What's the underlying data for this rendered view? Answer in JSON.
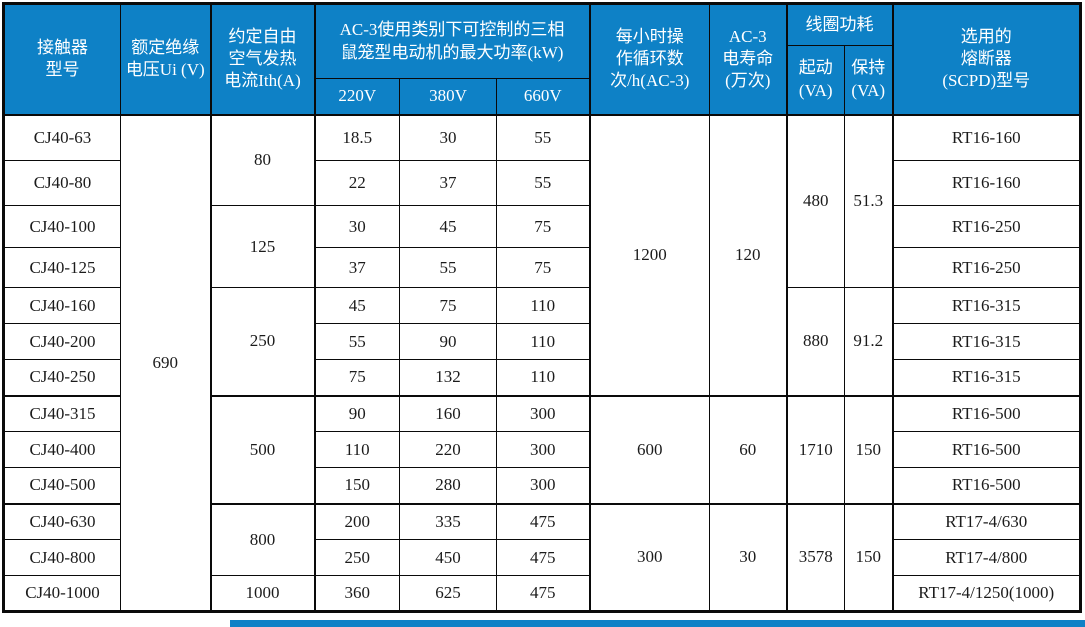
{
  "accent_color": "#0e81c6",
  "table": {
    "header": {
      "model": "接触器\n型号",
      "insulation": "额定绝缘\n电压Ui (V)",
      "thermal": "约定自由\n空气发热\n电流Ith(A)",
      "ac3_power": "AC-3使用类别下可控制的三相\n鼠笼型电动机的最大功率(kW)",
      "v220": "220V",
      "v380": "380V",
      "v660": "660V",
      "cycles": "每小时操\n作循环数\n次/h(AC-3)",
      "life": "AC-3\n电寿命\n(万次)",
      "coil": "线圈功耗",
      "coil_start": "起动\n(VA)",
      "coil_hold": "保持\n(VA)",
      "fuse": "选用的\n熔断器\n(SCPD)型号"
    },
    "rows": [
      {
        "model": "CJ40-63",
        "kw220": "18.5",
        "kw380": "30",
        "kw660": "55",
        "fuse": "RT16-160"
      },
      {
        "model": "CJ40-80",
        "kw220": "22",
        "kw380": "37",
        "kw660": "55",
        "fuse": "RT16-160"
      },
      {
        "model": "CJ40-100",
        "kw220": "30",
        "kw380": "45",
        "kw660": "75",
        "fuse": "RT16-250"
      },
      {
        "model": "CJ40-125",
        "kw220": "37",
        "kw380": "55",
        "kw660": "75",
        "fuse": "RT16-250"
      },
      {
        "model": "CJ40-160",
        "kw220": "45",
        "kw380": "75",
        "kw660": "110",
        "fuse": "RT16-315"
      },
      {
        "model": "CJ40-200",
        "kw220": "55",
        "kw380": "90",
        "kw660": "110",
        "fuse": "RT16-315"
      },
      {
        "model": "CJ40-250",
        "kw220": "75",
        "kw380": "132",
        "kw660": "110",
        "fuse": "RT16-315"
      },
      {
        "model": "CJ40-315",
        "kw220": "90",
        "kw380": "160",
        "kw660": "300",
        "fuse": "RT16-500"
      },
      {
        "model": "CJ40-400",
        "kw220": "110",
        "kw380": "220",
        "kw660": "300",
        "fuse": "RT16-500"
      },
      {
        "model": "CJ40-500",
        "kw220": "150",
        "kw380": "280",
        "kw660": "300",
        "fuse": "RT16-500"
      },
      {
        "model": "CJ40-630",
        "kw220": "200",
        "kw380": "335",
        "kw660": "475",
        "fuse": "RT17-4/630"
      },
      {
        "model": "CJ40-800",
        "kw220": "250",
        "kw380": "450",
        "kw660": "475",
        "fuse": "RT17-4/800"
      },
      {
        "model": "CJ40-1000",
        "kw220": "360",
        "kw380": "625",
        "kw660": "475",
        "fuse": "RT17-4/1250(1000)"
      }
    ],
    "merged": {
      "insulation": [
        {
          "value": "690",
          "start": 0,
          "span": 13
        }
      ],
      "thermal": [
        {
          "value": "80",
          "start": 0,
          "span": 2
        },
        {
          "value": "125",
          "start": 2,
          "span": 2
        },
        {
          "value": "250",
          "start": 4,
          "span": 3
        },
        {
          "value": "500",
          "start": 7,
          "span": 3
        },
        {
          "value": "800",
          "start": 10,
          "span": 2
        },
        {
          "value": "1000",
          "start": 12,
          "span": 1
        }
      ],
      "cycles": [
        {
          "value": "1200",
          "start": 0,
          "span": 7
        },
        {
          "value": "600",
          "start": 7,
          "span": 3
        },
        {
          "value": "300",
          "start": 10,
          "span": 3
        }
      ],
      "life": [
        {
          "value": "120",
          "start": 0,
          "span": 7
        },
        {
          "value": "60",
          "start": 7,
          "span": 3
        },
        {
          "value": "30",
          "start": 10,
          "span": 3
        }
      ],
      "coil_start": [
        {
          "value": "480",
          "start": 0,
          "span": 4
        },
        {
          "value": "880",
          "start": 4,
          "span": 3
        },
        {
          "value": "1710",
          "start": 7,
          "span": 3
        },
        {
          "value": "3578",
          "start": 10,
          "span": 3
        }
      ],
      "coil_hold": [
        {
          "value": "51.3",
          "start": 0,
          "span": 4
        },
        {
          "value": "91.2",
          "start": 4,
          "span": 3
        },
        {
          "value": "150",
          "start": 7,
          "span": 3
        },
        {
          "value": "150",
          "start": 10,
          "span": 3
        }
      ]
    }
  }
}
